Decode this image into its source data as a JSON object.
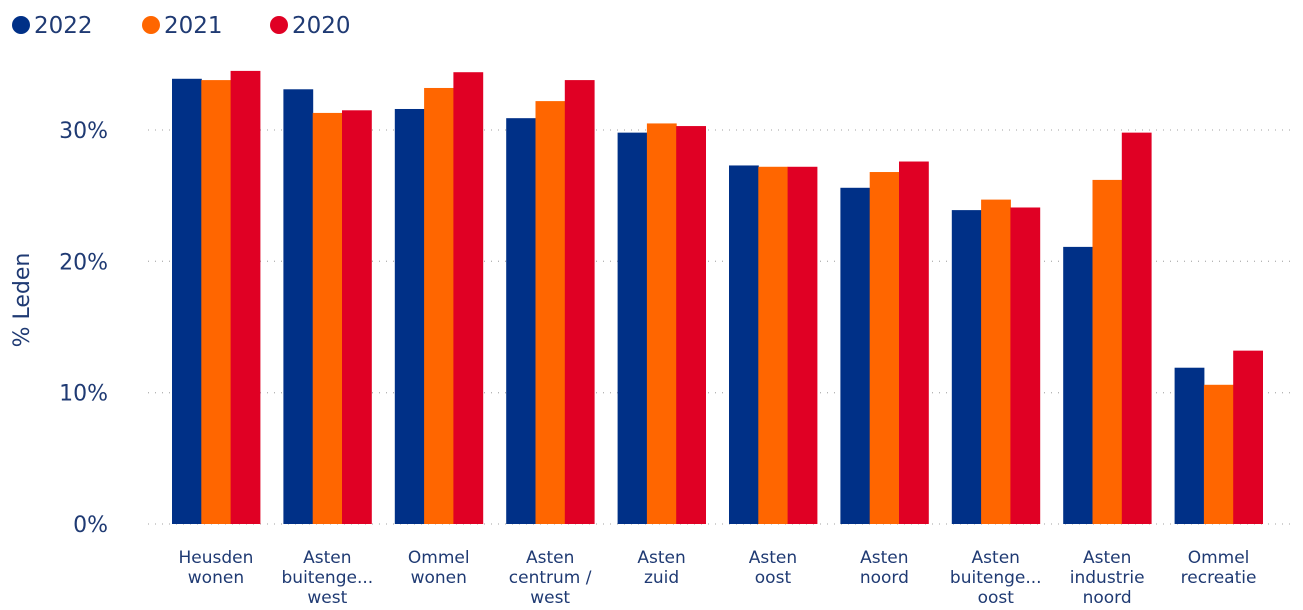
{
  "chart_data": {
    "type": "bar",
    "ylabel": "% Leden",
    "ylim": [
      0,
      0.3
    ],
    "yticks": [
      {
        "value": 0,
        "label": "0%"
      },
      {
        "value": 0.1,
        "label": "10%"
      },
      {
        "value": 0.2,
        "label": "20%"
      },
      {
        "value": 0.3,
        "label": "30%"
      }
    ],
    "grid": true,
    "legend_position": "top-left",
    "categories": [
      [
        "Heusden",
        "wonen"
      ],
      [
        "Asten",
        "buitenge...",
        "west"
      ],
      [
        "Ommel",
        "wonen"
      ],
      [
        "Asten",
        "centrum /",
        "west"
      ],
      [
        "Asten",
        "zuid"
      ],
      [
        "Asten",
        "oost"
      ],
      [
        "Asten",
        "noord"
      ],
      [
        "Asten",
        "buitenge...",
        "oost"
      ],
      [
        "Asten",
        "industrie",
        "noord"
      ],
      [
        "Ommel",
        "recreatie"
      ]
    ],
    "series": [
      {
        "name": "2022",
        "color": "#003087",
        "values": [
          0.339,
          0.331,
          0.316,
          0.309,
          0.298,
          0.273,
          0.256,
          0.239,
          0.211,
          0.119
        ]
      },
      {
        "name": "2021",
        "color": "#ff6600",
        "values": [
          0.338,
          0.313,
          0.332,
          0.322,
          0.305,
          0.272,
          0.268,
          0.247,
          0.262,
          0.106
        ]
      },
      {
        "name": "2020",
        "color": "#e00024",
        "values": [
          0.345,
          0.315,
          0.344,
          0.338,
          0.303,
          0.272,
          0.276,
          0.241,
          0.298,
          0.132
        ]
      }
    ]
  }
}
